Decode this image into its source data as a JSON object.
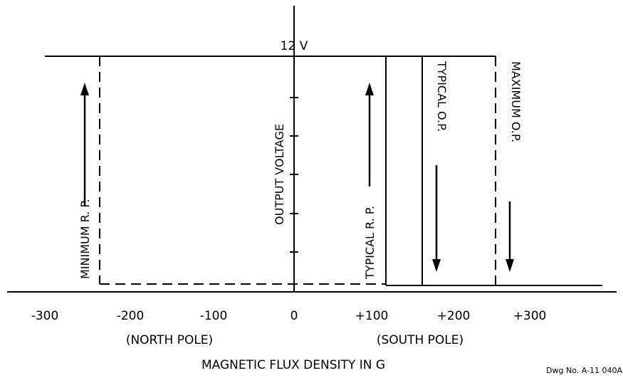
{
  "diagram": {
    "voltage_label": "12 V",
    "y_axis_label": "OUTPUT VOLTAGE",
    "x_axis_title": "MAGNETIC FLUX DENSITY IN G",
    "north_pole_label": "(NORTH POLE)",
    "south_pole_label": "(SOUTH POLE)",
    "drawing_number": "Dwg No. A-11 040A",
    "tick_labels": [
      "-300",
      "-200",
      "-100",
      "0",
      "+100",
      "+200",
      "+300"
    ],
    "annotations": {
      "minimum_rp": "MINIMUM R. P.",
      "typical_rp": "TYPICAL R. P.",
      "typical_op": "TYPICAL O.P.",
      "maximum_op": "MAXIMUM O.P."
    },
    "values_gauss": {
      "minimum_rp": -245,
      "typical_rp": 115,
      "typical_op": 160,
      "maximum_op": 245
    },
    "line_color": "#000000",
    "background": "#ffffff"
  }
}
